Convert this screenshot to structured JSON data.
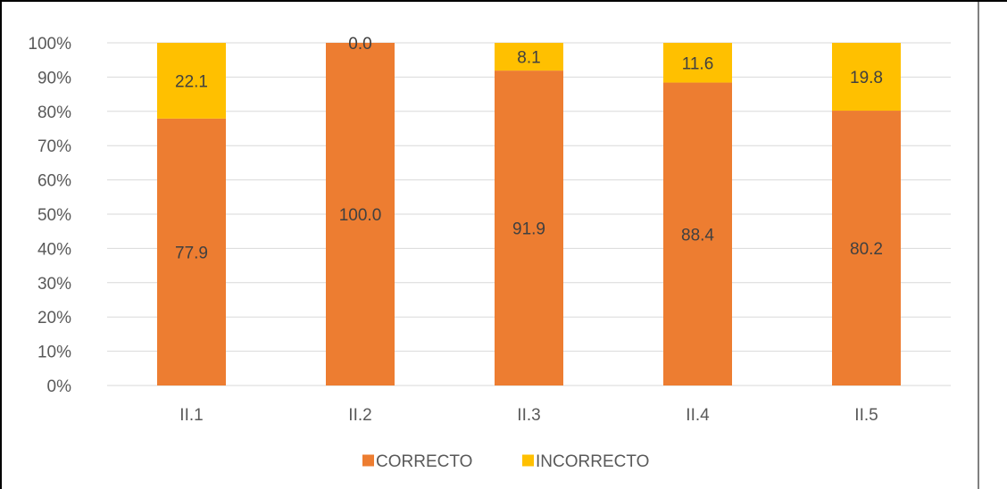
{
  "chart_data": {
    "type": "bar",
    "stacked": true,
    "percent_stacked": true,
    "categories": [
      "II.1",
      "II.2",
      "II.3",
      "II.4",
      "II.5"
    ],
    "series": [
      {
        "name": "CORRECTO",
        "color": "#ED7D31",
        "values": [
          77.9,
          100.0,
          91.9,
          88.4,
          80.2
        ],
        "labels": [
          "77.9",
          "100.0",
          "91.9",
          "88.4",
          "80.2"
        ]
      },
      {
        "name": "INCORRECTO",
        "color": "#FFC000",
        "values": [
          22.1,
          0.0,
          8.1,
          11.6,
          19.8
        ],
        "labels": [
          "22.1",
          "0.0",
          "8.1",
          "11.6",
          "19.8"
        ]
      }
    ],
    "yticks": [
      "0%",
      "10%",
      "20%",
      "30%",
      "40%",
      "50%",
      "60%",
      "70%",
      "80%",
      "90%",
      "100%"
    ],
    "ylim": [
      0,
      100
    ],
    "grid": true,
    "legend_position": "bottom",
    "gridline_color": "#D9D9D9",
    "frame_color": "#000000"
  }
}
